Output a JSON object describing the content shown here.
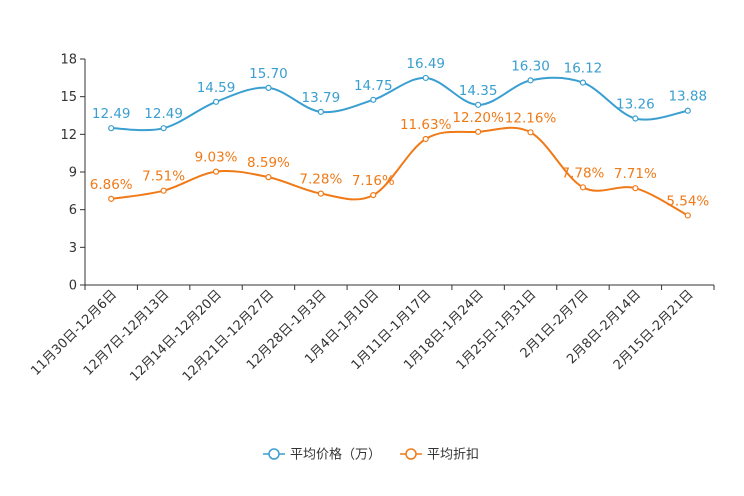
{
  "chart_data": {
    "type": "line",
    "title": "",
    "xlabel": "",
    "ylabel": "",
    "ylim": [
      0,
      18
    ],
    "yticks": [
      0,
      3,
      6,
      9,
      12,
      15,
      18
    ],
    "yticks_text": [
      "0",
      "3",
      "6",
      "9",
      "12",
      "15",
      "18"
    ],
    "grid": false,
    "legend_position": "bottom-center",
    "categories": [
      "11月30日-12月6日",
      "12月7日-12月13日",
      "12月14日-12月20日",
      "12月21日-12月27日",
      "12月28日-1月3日",
      "1月4日-1月10日",
      "1月11日-1月17日",
      "1月18日-1月24日",
      "1月25日-1月31日",
      "2月1日-2月7日",
      "2月8日-2月14日",
      "2月15日-2月21日"
    ],
    "series": [
      {
        "name": "平均价格（万）",
        "color": "#3a9fd0",
        "values": [
          12.49,
          12.49,
          14.59,
          15.7,
          13.79,
          14.75,
          16.49,
          14.35,
          16.3,
          16.12,
          13.26,
          13.88
        ],
        "labels": [
          "12.49",
          "12.49",
          "14.59",
          "15.70",
          "13.79",
          "14.75",
          "16.49",
          "14.35",
          "16.30",
          "16.12",
          "13.26",
          "13.88"
        ]
      },
      {
        "name": "平均折扣",
        "color": "#f07a18",
        "values": [
          6.86,
          7.51,
          9.03,
          8.59,
          7.28,
          7.16,
          11.63,
          12.2,
          12.16,
          7.78,
          7.71,
          5.54
        ],
        "labels": [
          "6.86%",
          "7.51%",
          "9.03%",
          "8.59%",
          "7.28%",
          "7.16%",
          "11.63%",
          "12.20%",
          "12.16%",
          "7.78%",
          "7.71%",
          "5.54%"
        ]
      }
    ]
  }
}
